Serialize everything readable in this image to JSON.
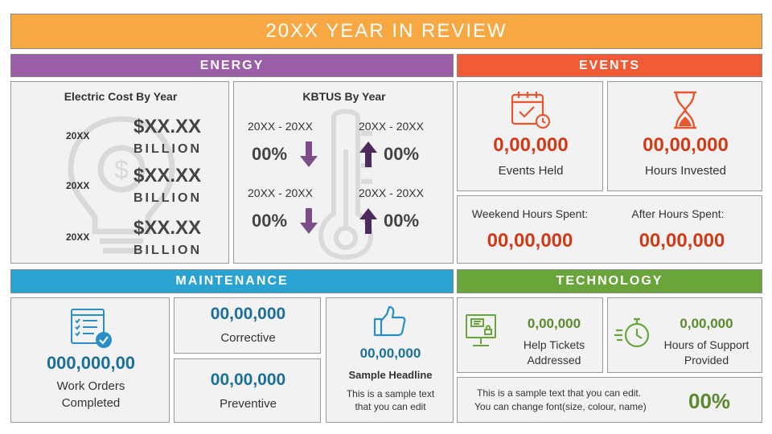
{
  "title": "20XX YEAR IN REVIEW",
  "colors": {
    "title_bar": "#f7a842",
    "energy": "#9b5fa8",
    "events": "#f05a35",
    "maintenance": "#2aa3d2",
    "technology": "#6aa53b",
    "value_red": "#d23a17",
    "value_blue": "#1b6f98",
    "value_green": "#5b8a2e",
    "arrow_purple": "#7c4d8a",
    "arrow_dark_purple": "#4c2b5c"
  },
  "energy": {
    "header": "ENERGY",
    "electric": {
      "title": "Electric Cost By Year",
      "rows": [
        {
          "year": "20XX",
          "amount": "$XX.XX",
          "unit": "BILLION"
        },
        {
          "year": "20XX",
          "amount": "$XX.XX",
          "unit": "BILLION"
        },
        {
          "year": "20XX",
          "amount": "$XX.XX",
          "unit": "BILLION"
        }
      ],
      "icon": "lightbulb-dollar-icon"
    },
    "kbtus": {
      "title": "KBTUS By Year",
      "cells": [
        {
          "period": "20XX - 20XX",
          "value": "00%",
          "direction": "down"
        },
        {
          "period": "20XX - 20XX",
          "value": "00%",
          "direction": "up"
        },
        {
          "period": "20XX - 20XX",
          "value": "00%",
          "direction": "down"
        },
        {
          "period": "20XX - 20XX",
          "value": "00%",
          "direction": "up"
        }
      ],
      "icon": "thermometer-icon"
    }
  },
  "events": {
    "header": "EVENTS",
    "held": {
      "value": "0,00,000",
      "label": "Events Held",
      "icon": "calendar-check-icon"
    },
    "hours": {
      "value": "00,00,000",
      "label": "Hours Invested",
      "icon": "hourglass-icon"
    },
    "weekend": {
      "label": "Weekend Hours Spent:",
      "value": "00,00,000"
    },
    "after": {
      "label": "After Hours Spent:",
      "value": "00,00,000"
    }
  },
  "maintenance": {
    "header": "MAINTENANCE",
    "work_orders": {
      "value": "000,000,00",
      "label_line1": "Work Orders",
      "label_line2": "Completed",
      "icon": "checklist-icon"
    },
    "corrective": {
      "value": "00,00,000",
      "label": "Corrective"
    },
    "preventive": {
      "value": "00,00,000",
      "label": "Preventive"
    },
    "sample": {
      "value": "00,00,000",
      "headline": "Sample Headline",
      "text_line1": "This is a sample text",
      "text_line2": "that you can edit",
      "icon": "thumbs-up-icon"
    }
  },
  "technology": {
    "header": "TECHNOLOGY",
    "tickets": {
      "value": "0,00,000",
      "label_line1": "Help Tickets",
      "label_line2": "Addressed",
      "icon": "monitor-lock-icon"
    },
    "support": {
      "value": "0,00,000",
      "label_line1": "Hours of Support",
      "label_line2": "Provided",
      "icon": "stopwatch-icon"
    },
    "note": {
      "line1": "This is a sample text that you can edit.",
      "line2": "You can change font(size, colour, name)",
      "percent": "00%"
    }
  }
}
